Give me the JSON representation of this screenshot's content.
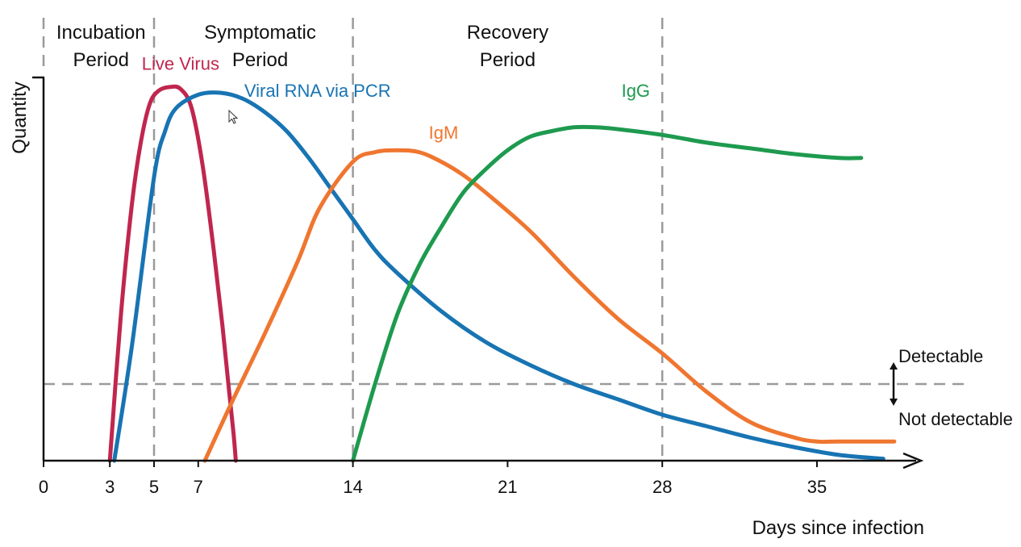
{
  "chart_data": {
    "type": "line",
    "title": "",
    "xlabel": "Days since infection",
    "ylabel": "Quantity",
    "xlim": [
      0,
      38
    ],
    "ylim": [
      0,
      1
    ],
    "x_ticks": [
      0,
      3,
      5,
      7,
      14,
      21,
      28,
      35
    ],
    "x_tick_labels": [
      "0",
      "3",
      "5",
      "7",
      "14",
      "21",
      "28",
      "35"
    ],
    "threshold": {
      "y": 0.2,
      "label_above": "Detectable",
      "label_below": "Not detectable"
    },
    "periods": [
      {
        "lines": [
          "Incubation",
          "Period"
        ],
        "center_x": 2.6,
        "boundary_x": 5
      },
      {
        "lines": [
          "Symptomatic",
          "Period"
        ],
        "center_x": 9.8,
        "boundary_x": 14
      },
      {
        "lines": [
          "Recovery",
          "Period"
        ],
        "center_x": 21,
        "boundary_x": 28
      }
    ],
    "series": [
      {
        "name": "Live Virus",
        "color": "#c0264e",
        "x": [
          3,
          3.5,
          4,
          4.4,
          4.8,
          5.2,
          5.7,
          6.2,
          6.7,
          7.2,
          7.7,
          8.1,
          8.4,
          8.6,
          8.7
        ],
        "y": [
          0,
          0.38,
          0.67,
          0.83,
          0.93,
          0.965,
          0.975,
          0.97,
          0.92,
          0.77,
          0.55,
          0.35,
          0.18,
          0.07,
          0
        ]
      },
      {
        "name": "Viral RNA via PCR",
        "color": "#1874b3",
        "x": [
          3.2,
          4,
          5,
          5.5,
          6,
          7,
          8,
          9,
          10,
          11,
          12,
          13,
          14,
          15,
          16,
          18,
          20,
          22,
          24,
          26,
          28,
          30,
          32,
          34,
          36,
          38
        ],
        "y": [
          0,
          0.3,
          0.74,
          0.86,
          0.92,
          0.955,
          0.96,
          0.945,
          0.91,
          0.86,
          0.79,
          0.71,
          0.63,
          0.55,
          0.49,
          0.39,
          0.31,
          0.25,
          0.2,
          0.16,
          0.12,
          0.09,
          0.06,
          0.035,
          0.015,
          0.005
        ]
      },
      {
        "name": "IgM",
        "color": "#ef7630",
        "x": [
          7.3,
          8.5,
          10,
          11.5,
          12.5,
          14,
          15,
          16,
          17,
          18,
          19,
          20,
          22,
          24,
          26,
          28,
          30,
          32,
          34,
          35,
          36,
          37,
          38.5
        ],
        "y": [
          0,
          0.15,
          0.33,
          0.52,
          0.66,
          0.78,
          0.805,
          0.81,
          0.805,
          0.78,
          0.745,
          0.7,
          0.6,
          0.48,
          0.37,
          0.28,
          0.18,
          0.1,
          0.06,
          0.05,
          0.05,
          0.05,
          0.05
        ]
      },
      {
        "name": "IgG",
        "color": "#1e9a4f",
        "x": [
          14,
          15,
          16,
          17,
          18,
          19,
          20,
          21,
          22,
          23,
          24,
          25,
          26,
          28,
          30,
          32,
          34,
          36,
          37
        ],
        "y": [
          0,
          0.2,
          0.38,
          0.51,
          0.61,
          0.7,
          0.76,
          0.81,
          0.845,
          0.86,
          0.87,
          0.87,
          0.865,
          0.85,
          0.83,
          0.815,
          0.8,
          0.79,
          0.79
        ]
      }
    ],
    "series_labels": [
      {
        "name": "Live Virus",
        "x": 6.2,
        "y": 1.02
      },
      {
        "name": "Viral RNA via PCR",
        "x": 12.4,
        "y": 0.95
      },
      {
        "name": "IgM",
        "x": 18.1,
        "y": 0.84
      },
      {
        "name": "IgG",
        "x": 26.8,
        "y": 0.95
      }
    ]
  }
}
